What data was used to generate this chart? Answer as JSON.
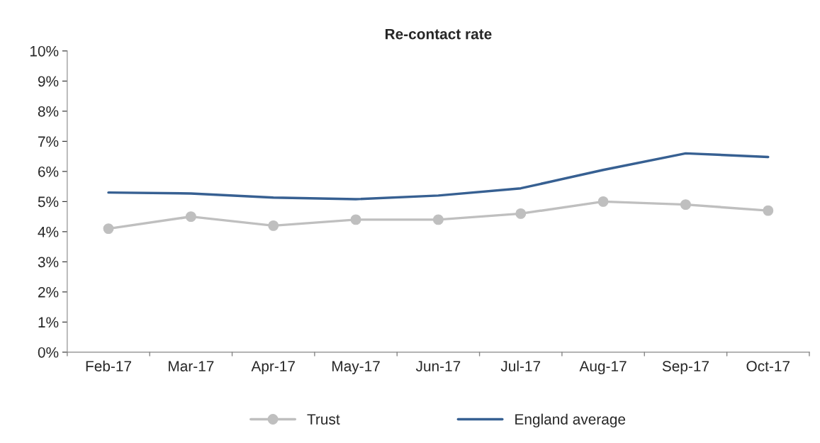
{
  "chart_data": {
    "type": "line",
    "title": "Re-contact rate",
    "categories": [
      "Feb-17",
      "Mar-17",
      "Apr-17",
      "May-17",
      "Jun-17",
      "Jul-17",
      "Aug-17",
      "Sep-17",
      "Oct-17"
    ],
    "series": [
      {
        "name": "Trust",
        "color": "#bfbfbf",
        "marker": "circle",
        "values": [
          4.1,
          4.5,
          4.2,
          4.4,
          4.4,
          4.6,
          5.0,
          4.9,
          4.7
        ]
      },
      {
        "name": "England average",
        "color": "#376092",
        "marker": "none",
        "values": [
          5.3,
          5.27,
          5.13,
          5.08,
          5.2,
          5.44,
          6.05,
          6.6,
          6.48
        ]
      }
    ],
    "ylim": [
      0,
      10
    ],
    "yticks": [
      {
        "value": 0,
        "label": "0%"
      },
      {
        "value": 1,
        "label": "1%"
      },
      {
        "value": 2,
        "label": "2%"
      },
      {
        "value": 3,
        "label": "3%"
      },
      {
        "value": 4,
        "label": "4%"
      },
      {
        "value": 5,
        "label": "5%"
      },
      {
        "value": 6,
        "label": "6%"
      },
      {
        "value": 7,
        "label": "7%"
      },
      {
        "value": 8,
        "label": "8%"
      },
      {
        "value": 9,
        "label": "9%"
      },
      {
        "value": 10,
        "label": "10%"
      }
    ],
    "grid": false,
    "legend": "bottom",
    "line_style": "solid"
  }
}
